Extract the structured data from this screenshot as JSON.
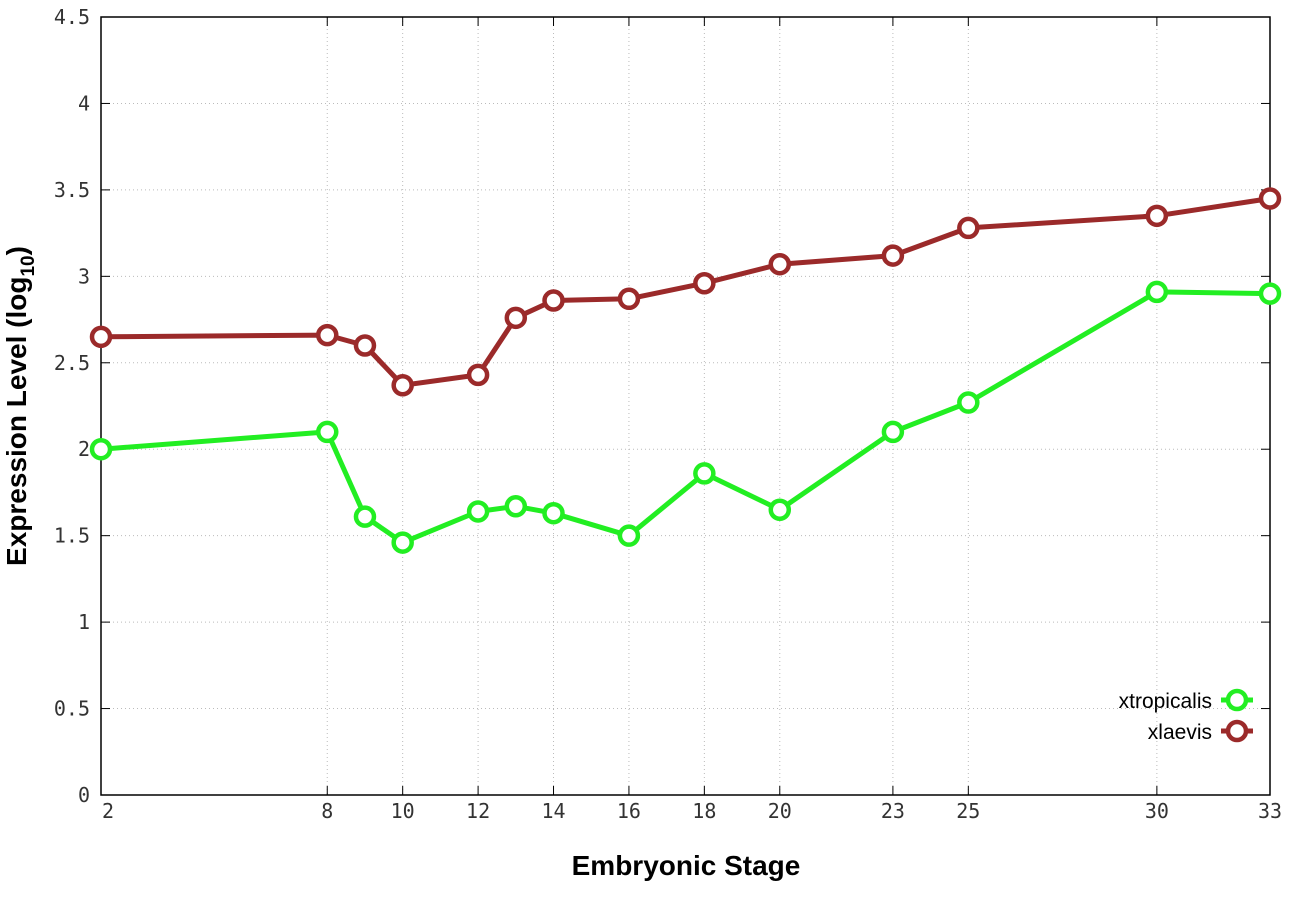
{
  "chart_data": {
    "type": "line",
    "xlabel": "Embryonic Stage",
    "ylabel_main": "Expression Level (log",
    "ylabel_sub": "10",
    "ylabel_close": ")",
    "xlim": [
      2,
      33
    ],
    "ylim": [
      0,
      4.5
    ],
    "x_ticks": [
      2,
      8,
      10,
      12,
      14,
      16,
      18,
      20,
      23,
      25,
      30,
      33
    ],
    "y_ticks": [
      0,
      0.5,
      1,
      1.5,
      2,
      2.5,
      3,
      3.5,
      4,
      4.5
    ],
    "y_tick_labels": [
      "0",
      "0.5",
      "1",
      "1.5",
      "2",
      "2.5",
      "3",
      "3.5",
      "4",
      "4.5"
    ],
    "grid": true,
    "legend_position": "bottom-right",
    "x": [
      2,
      8,
      9,
      10,
      12,
      13,
      14,
      16,
      18,
      20,
      23,
      25,
      30,
      33
    ],
    "series": [
      {
        "name": "xtropicalis",
        "color": "#22ee22",
        "values": [
          2.0,
          2.1,
          1.61,
          1.46,
          1.64,
          1.67,
          1.63,
          1.5,
          1.86,
          1.65,
          2.1,
          2.27,
          2.91,
          2.9
        ]
      },
      {
        "name": "xlaevis",
        "color": "#9b2a2a",
        "values": [
          2.65,
          2.66,
          2.6,
          2.37,
          2.43,
          2.76,
          2.86,
          2.87,
          2.96,
          3.07,
          3.12,
          3.28,
          3.35,
          3.45
        ]
      }
    ]
  }
}
